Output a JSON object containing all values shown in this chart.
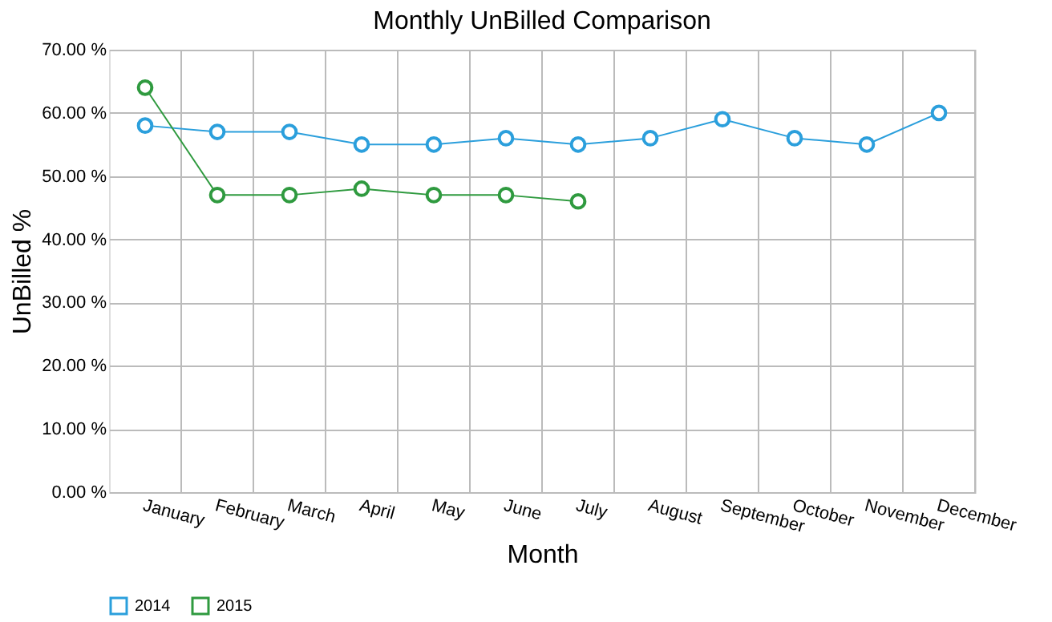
{
  "chart_data": {
    "type": "line",
    "title": "Monthly UnBilled Comparison",
    "xlabel": "Month",
    "ylabel": "UnBilled %",
    "categories": [
      "January",
      "February",
      "March",
      "April",
      "May",
      "June",
      "July",
      "August",
      "September",
      "October",
      "November",
      "December"
    ],
    "series": [
      {
        "name": "2014",
        "color": "#2b9fdc",
        "values": [
          58,
          57,
          57,
          55,
          55,
          56,
          55,
          56,
          59,
          56,
          55,
          60
        ]
      },
      {
        "name": "2015",
        "color": "#2f9a3f",
        "values": [
          64,
          47,
          47,
          48,
          47,
          47,
          46,
          null,
          null,
          null,
          null,
          null
        ]
      }
    ],
    "ylim": [
      0,
      70
    ],
    "yticks": [
      {
        "value": 0,
        "label": "0.00 %"
      },
      {
        "value": 10,
        "label": "10.00 %"
      },
      {
        "value": 20,
        "label": "20.00 %"
      },
      {
        "value": 30,
        "label": "30.00 %"
      },
      {
        "value": 40,
        "label": "40.00 %"
      },
      {
        "value": 50,
        "label": "50.00 %"
      },
      {
        "value": 60,
        "label": "60.00 %"
      },
      {
        "value": 70,
        "label": "70.00 %"
      }
    ],
    "grid": true,
    "legend": "bottom",
    "marker": "circle",
    "line_style": "solid"
  }
}
